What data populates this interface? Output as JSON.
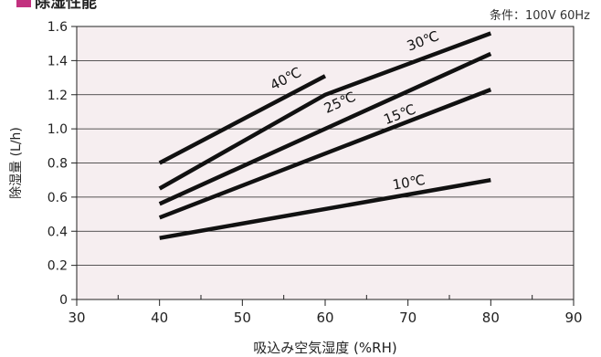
{
  "chart_data": {
    "type": "line",
    "title": "除湿性能",
    "subtitle": "条件：100V 60Hz",
    "xlabel": "吸込み空気湿度 (%RH)",
    "ylabel": "除湿量 (L/h)",
    "xlim": [
      30,
      90
    ],
    "ylim": [
      0,
      1.6
    ],
    "xticks": [
      "30",
      "40",
      "50",
      "60",
      "70",
      "80",
      "90"
    ],
    "yticks": [
      "0",
      "0.2",
      "0.4",
      "0.6",
      "0.8",
      "1.0",
      "1.2",
      "1.4",
      "1.6"
    ],
    "grid": "horizontal",
    "series": [
      {
        "name": "40℃",
        "x": [
          40,
          60
        ],
        "y": [
          0.8,
          1.31
        ]
      },
      {
        "name": "30℃",
        "x": [
          40,
          60,
          80
        ],
        "y": [
          0.65,
          1.2,
          1.56
        ]
      },
      {
        "name": "25℃",
        "x": [
          40,
          80
        ],
        "y": [
          0.56,
          1.44
        ]
      },
      {
        "name": "15℃",
        "x": [
          40,
          80
        ],
        "y": [
          0.48,
          1.23
        ]
      },
      {
        "name": "10℃",
        "x": [
          40,
          80
        ],
        "y": [
          0.36,
          0.7
        ]
      }
    ]
  },
  "colors": {
    "plot_background": "#f6eef0",
    "line": "#111111",
    "title_square": "#c2317f",
    "grid": "#222222"
  }
}
